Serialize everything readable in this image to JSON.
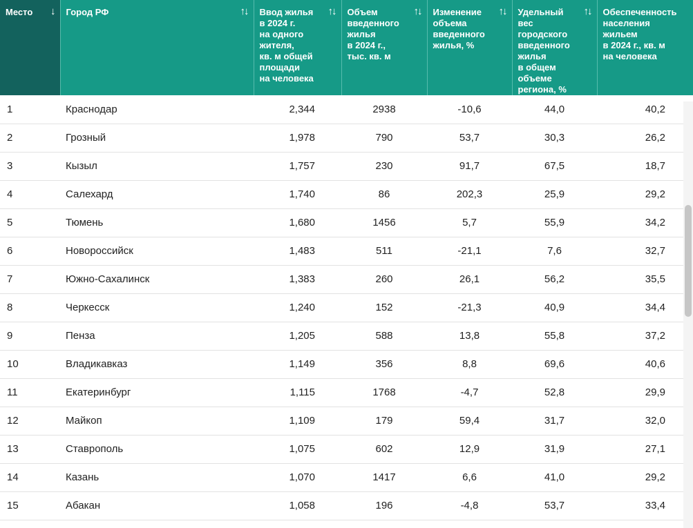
{
  "table": {
    "columns": [
      {
        "label": "Место",
        "sort_icon": "↓"
      },
      {
        "label": "Город РФ",
        "sort_icon": "↑↓"
      },
      {
        "label": "Ввод жилья\nв 2024 г.\nна одного\nжителя,\nкв. м общей\nплощади\nна человека",
        "sort_icon": "↑↓"
      },
      {
        "label": "Объем\nвведенного\nжилья\nв 2024 г.,\nтыс. кв. м",
        "sort_icon": "↑↓"
      },
      {
        "label": "Изменение\nобъема\nвведенного\nжилья, %",
        "sort_icon": "↑↓"
      },
      {
        "label": "Удельный\nвес\nгородского\nвведенного\nжилья\nв общем\nобъеме\nрегиона, %",
        "sort_icon": "↑↓"
      },
      {
        "label": "Обеспеченность\nнаселения\nжильем\nв 2024 г., кв. м\nна человека",
        "sort_icon": ""
      }
    ],
    "rows": [
      [
        "1",
        "Краснодар",
        "2,344",
        "2938",
        "-10,6",
        "44,0",
        "40,2"
      ],
      [
        "2",
        "Грозный",
        "1,978",
        "790",
        "53,7",
        "30,3",
        "26,2"
      ],
      [
        "3",
        "Кызыл",
        "1,757",
        "230",
        "91,7",
        "67,5",
        "18,7"
      ],
      [
        "4",
        "Салехард",
        "1,740",
        "86",
        "202,3",
        "25,9",
        "29,2"
      ],
      [
        "5",
        "Тюмень",
        "1,680",
        "1456",
        "5,7",
        "55,9",
        "34,2"
      ],
      [
        "6",
        "Новороссийск",
        "1,483",
        "511",
        "-21,1",
        "7,6",
        "32,7"
      ],
      [
        "7",
        "Южно-Сахалинск",
        "1,383",
        "260",
        "26,1",
        "56,2",
        "35,5"
      ],
      [
        "8",
        "Черкесск",
        "1,240",
        "152",
        "-21,3",
        "40,9",
        "34,4"
      ],
      [
        "9",
        "Пенза",
        "1,205",
        "588",
        "13,8",
        "55,8",
        "37,2"
      ],
      [
        "10",
        "Владикавказ",
        "1,149",
        "356",
        "8,8",
        "69,6",
        "40,6"
      ],
      [
        "11",
        "Екатеринбург",
        "1,115",
        "1768",
        "-4,7",
        "52,8",
        "29,9"
      ],
      [
        "12",
        "Майкоп",
        "1,109",
        "179",
        "59,4",
        "31,7",
        "32,0"
      ],
      [
        "13",
        "Ставрополь",
        "1,075",
        "602",
        "12,9",
        "31,9",
        "27,1"
      ],
      [
        "14",
        "Казань",
        "1,070",
        "1417",
        "6,6",
        "41,0",
        "29,2"
      ],
      [
        "15",
        "Абакан",
        "1,058",
        "196",
        "-4,8",
        "53,7",
        "33,4"
      ]
    ]
  },
  "colors": {
    "header": "#169a87",
    "header_active": "#13625d",
    "row_border": "#e2e2e2"
  }
}
